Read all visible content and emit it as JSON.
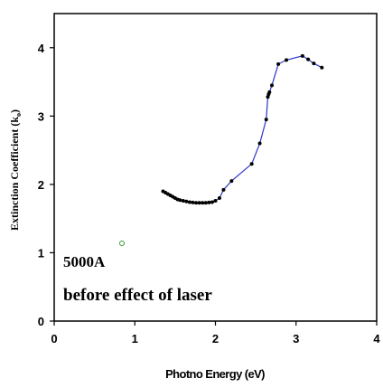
{
  "chart_data": {
    "type": "line",
    "xlabel": "Photno Energy (eV)",
    "ylabel": "Extinction Coefficient (k",
    "ylabel_sub": "o",
    "ylabel_close": ")",
    "xlim": [
      0,
      4
    ],
    "ylim": [
      0,
      4.5
    ],
    "xticks": [
      "0",
      "1",
      "2",
      "3",
      "4"
    ],
    "yticks": [
      "0",
      "1",
      "2",
      "3",
      "4"
    ],
    "grid": false,
    "annotations": [
      "5000A",
      "before effect of laser"
    ],
    "series": [
      {
        "color": "#2b36c8",
        "marker_color": "#000000",
        "x": [
          1.35,
          1.38,
          1.41,
          1.44,
          1.47,
          1.5,
          1.53,
          1.56,
          1.6,
          1.64,
          1.68,
          1.72,
          1.76,
          1.8,
          1.84,
          1.88,
          1.92,
          1.96,
          2.0,
          2.05,
          2.1,
          2.2,
          2.45,
          2.55,
          2.63,
          2.65,
          2.66,
          2.67,
          2.7,
          2.78,
          2.88,
          3.08,
          3.15,
          3.22,
          3.32
        ],
        "y": [
          1.9,
          1.88,
          1.86,
          1.84,
          1.82,
          1.8,
          1.78,
          1.77,
          1.76,
          1.75,
          1.74,
          1.735,
          1.73,
          1.73,
          1.73,
          1.73,
          1.735,
          1.74,
          1.76,
          1.8,
          1.92,
          2.05,
          2.3,
          2.6,
          2.95,
          3.28,
          3.32,
          3.35,
          3.45,
          3.76,
          3.82,
          3.88,
          3.83,
          3.77,
          3.71
        ]
      }
    ]
  }
}
